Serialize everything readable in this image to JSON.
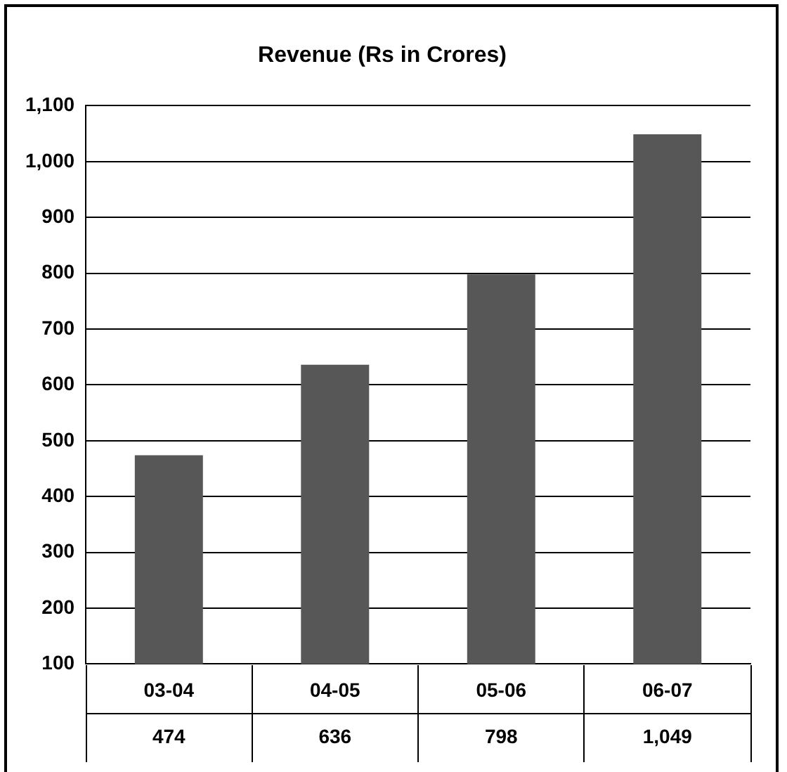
{
  "chart_data": {
    "type": "bar",
    "title": "Revenue (Rs in Crores)",
    "categories": [
      "03-04",
      "04-05",
      "05-06",
      "06-07"
    ],
    "values": [
      474,
      636,
      798,
      1049
    ],
    "value_labels": [
      "474",
      "636",
      "798",
      "1,049"
    ],
    "color": "#575757",
    "ylim": [
      100,
      1100
    ],
    "yticks": [
      100,
      200,
      300,
      400,
      500,
      600,
      700,
      800,
      900,
      {
        "value": 1000,
        "label": "1,000"
      },
      {
        "value": 1100,
        "label": "1,100"
      }
    ],
    "grid": "y",
    "legend": false
  }
}
